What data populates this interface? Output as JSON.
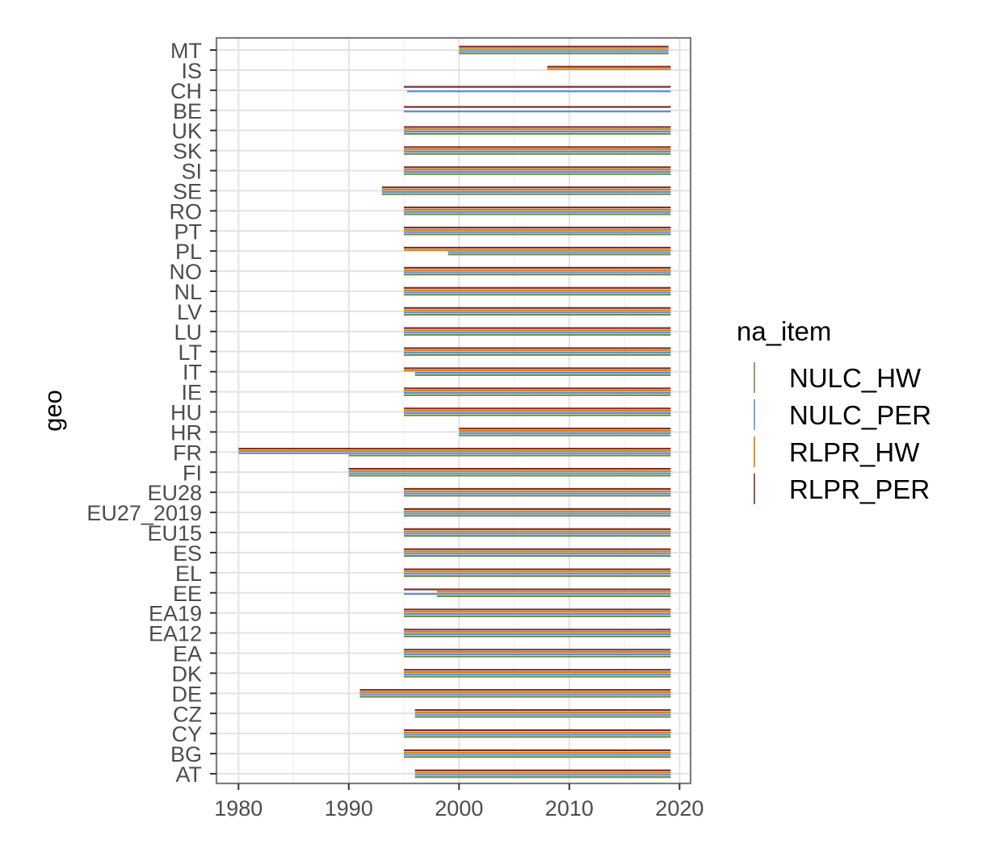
{
  "chart_data": {
    "type": "range-bar",
    "title": "",
    "xlabel": "",
    "ylabel": "geo",
    "xlim": [
      1978,
      2021
    ],
    "x_ticks": [
      1980,
      1990,
      2000,
      2010,
      2020
    ],
    "grid": true,
    "legend_position": "right",
    "legend": {
      "title": "na_item",
      "items": [
        {
          "name": "NULC_HW",
          "color": "#6b8e4e"
        },
        {
          "name": "NULC_PER",
          "color": "#5b8fd6"
        },
        {
          "name": "RLPR_HW",
          "color": "#e07b00"
        },
        {
          "name": "RLPR_PER",
          "color": "#7a2f2f"
        }
      ]
    },
    "categories": [
      "MT",
      "IS",
      "CH",
      "BE",
      "UK",
      "SK",
      "SI",
      "SE",
      "RO",
      "PT",
      "PL",
      "NO",
      "NL",
      "LV",
      "LU",
      "LT",
      "IT",
      "IE",
      "HU",
      "HR",
      "FR",
      "FI",
      "EU28",
      "EU27_2019",
      "EU15",
      "ES",
      "EL",
      "EE",
      "EA19",
      "EA12",
      "EA",
      "DK",
      "DE",
      "CZ",
      "CY",
      "BG",
      "AT"
    ],
    "series": [
      {
        "name": "RLPR_PER",
        "ranges": {
          "MT": [
            2000,
            2019
          ],
          "IS": [
            2008,
            2019.2
          ],
          "CH": [
            1995,
            2019.2
          ],
          "BE": [
            1995,
            2019.2
          ],
          "UK": [
            1995,
            2019.2
          ],
          "SK": [
            1995,
            2019.2
          ],
          "SI": [
            1995,
            2019.2
          ],
          "SE": [
            1993,
            2019.2
          ],
          "RO": [
            1995,
            2019.2
          ],
          "PT": [
            1995,
            2019.2
          ],
          "PL": [
            1995,
            2019.2
          ],
          "NO": [
            1995,
            2019.2
          ],
          "NL": [
            1995,
            2019.2
          ],
          "LV": [
            1995,
            2019.2
          ],
          "LU": [
            1995,
            2019.2
          ],
          "LT": [
            1995,
            2019.2
          ],
          "IT": [
            1995,
            2019.2
          ],
          "IE": [
            1995,
            2019.2
          ],
          "HU": [
            1995,
            2019.2
          ],
          "HR": [
            2000,
            2019.2
          ],
          "FR": [
            1980,
            2019.2
          ],
          "FI": [
            1990,
            2019.2
          ],
          "EU28": [
            1995,
            2019.2
          ],
          "EU27_2019": [
            1995,
            2019.2
          ],
          "EU15": [
            1995,
            2019.2
          ],
          "ES": [
            1995,
            2019.2
          ],
          "EL": [
            1995,
            2019.2
          ],
          "EE": [
            1995,
            2019.2
          ],
          "EA19": [
            1995,
            2019.2
          ],
          "EA12": [
            1995,
            2019.2
          ],
          "EA": [
            1995,
            2019.2
          ],
          "DK": [
            1995,
            2019.2
          ],
          "DE": [
            1991,
            2019.2
          ],
          "CZ": [
            1996,
            2019.2
          ],
          "CY": [
            1995,
            2019.2
          ],
          "BG": [
            1995,
            2019.2
          ],
          "AT": [
            1996,
            2019.2
          ]
        }
      },
      {
        "name": "RLPR_HW",
        "ranges": {
          "MT": [
            2000,
            2019
          ],
          "IS": [
            2008,
            2019.2
          ],
          "UK": [
            1995,
            2019.2
          ],
          "SK": [
            1995,
            2019.2
          ],
          "SI": [
            1995,
            2019.2
          ],
          "SE": [
            1993,
            2019.2
          ],
          "RO": [
            1995,
            2019.2
          ],
          "PT": [
            1995,
            2019.2
          ],
          "PL": [
            1995,
            2019.2
          ],
          "NO": [
            1995,
            2019.2
          ],
          "NL": [
            1995,
            2019.2
          ],
          "LV": [
            1995,
            2019.2
          ],
          "LU": [
            1995,
            2019.2
          ],
          "LT": [
            1995,
            2019.2
          ],
          "IT": [
            1995,
            2019.2
          ],
          "IE": [
            1995,
            2019.2
          ],
          "HU": [
            1995,
            2019.2
          ],
          "HR": [
            2000,
            2019.2
          ],
          "FR": [
            1980,
            2019.2
          ],
          "FI": [
            1990,
            2019.2
          ],
          "EU28": [
            1995,
            2019.2
          ],
          "EU27_2019": [
            1995,
            2019.2
          ],
          "EU15": [
            1995,
            2019.2
          ],
          "ES": [
            1995,
            2019.2
          ],
          "EL": [
            1995,
            2019.2
          ],
          "EE": [
            1998,
            2019.2
          ],
          "EA19": [
            1995,
            2019.2
          ],
          "EA12": [
            1995,
            2019.2
          ],
          "EA": [
            1995,
            2019.2
          ],
          "DK": [
            1995,
            2019.2
          ],
          "DE": [
            1991,
            2019.2
          ],
          "CZ": [
            1996,
            2019.2
          ],
          "CY": [
            1995,
            2019.2
          ],
          "BG": [
            1995,
            2019.2
          ],
          "AT": [
            1996,
            2019.2
          ]
        }
      },
      {
        "name": "NULC_PER",
        "ranges": {
          "MT": [
            2000,
            2019
          ],
          "CH": [
            1995.3,
            2019.2
          ],
          "BE": [
            1995,
            2019.2
          ],
          "UK": [
            1995,
            2019.2
          ],
          "SK": [
            1995,
            2019.2
          ],
          "SI": [
            1995,
            2019.2
          ],
          "SE": [
            1993,
            2019.2
          ],
          "RO": [
            1995,
            2019.2
          ],
          "PT": [
            1995,
            2019.2
          ],
          "PL": [
            1999,
            2019.2
          ],
          "NO": [
            1995,
            2019.2
          ],
          "NL": [
            1995,
            2019.2
          ],
          "LV": [
            1995,
            2019.2
          ],
          "LU": [
            1995,
            2019.2
          ],
          "LT": [
            1995,
            2019.2
          ],
          "IT": [
            1996,
            2019.2
          ],
          "IE": [
            1995,
            2019.2
          ],
          "HU": [
            1995,
            2019.2
          ],
          "HR": [
            2000,
            2019.2
          ],
          "FR": [
            1980,
            2019.2
          ],
          "FI": [
            1990,
            2019.2
          ],
          "EU28": [
            1995,
            2019.2
          ],
          "EU27_2019": [
            1995,
            2019.2
          ],
          "EU15": [
            1995,
            2019.2
          ],
          "ES": [
            1995,
            2019.2
          ],
          "EL": [
            1995,
            2019.2
          ],
          "EE": [
            1995,
            2019.2
          ],
          "EA19": [
            1995,
            2019.2
          ],
          "EA12": [
            1995,
            2019.2
          ],
          "EA": [
            1995,
            2019.2
          ],
          "DK": [
            1995,
            2019.2
          ],
          "DE": [
            1991,
            2019.2
          ],
          "CZ": [
            1996,
            2019.2
          ],
          "CY": [
            1995,
            2019.2
          ],
          "BG": [
            1995,
            2019.2
          ],
          "AT": [
            1996,
            2019.2
          ]
        }
      },
      {
        "name": "NULC_HW",
        "ranges": {
          "MT": [
            2000,
            2019
          ],
          "UK": [
            1995,
            2019.2
          ],
          "SK": [
            1995,
            2019.2
          ],
          "SI": [
            1995,
            2019.2
          ],
          "SE": [
            1993,
            2019.2
          ],
          "RO": [
            1995,
            2019.2
          ],
          "PT": [
            1995,
            2019.2
          ],
          "PL": [
            1999,
            2019.2
          ],
          "NO": [
            1995,
            2019.2
          ],
          "NL": [
            1995,
            2019.2
          ],
          "LV": [
            1995,
            2019.2
          ],
          "LU": [
            1995,
            2019.2
          ],
          "LT": [
            1995,
            2019.2
          ],
          "IT": [
            1996,
            2019.2
          ],
          "IE": [
            1995,
            2019.2
          ],
          "HU": [
            1995,
            2019.2
          ],
          "HR": [
            2000,
            2019.2
          ],
          "FR": [
            1990,
            2019.2
          ],
          "FI": [
            1990,
            2019.2
          ],
          "EU28": [
            1995,
            2019.2
          ],
          "EU27_2019": [
            1995,
            2019.2
          ],
          "EU15": [
            1995,
            2019.2
          ],
          "ES": [
            1995,
            2019.2
          ],
          "EL": [
            1995,
            2019.2
          ],
          "EE": [
            1998,
            2019.2
          ],
          "EA19": [
            1995,
            2019.2
          ],
          "EA12": [
            1995,
            2019.2
          ],
          "EA": [
            1995,
            2019.2
          ],
          "DK": [
            1995,
            2019.2
          ],
          "DE": [
            1991,
            2019.2
          ],
          "CZ": [
            1996,
            2019.2
          ],
          "CY": [
            1995,
            2019.2
          ],
          "BG": [
            1995,
            2019.2
          ],
          "AT": [
            1996,
            2019.2
          ]
        }
      }
    ]
  }
}
